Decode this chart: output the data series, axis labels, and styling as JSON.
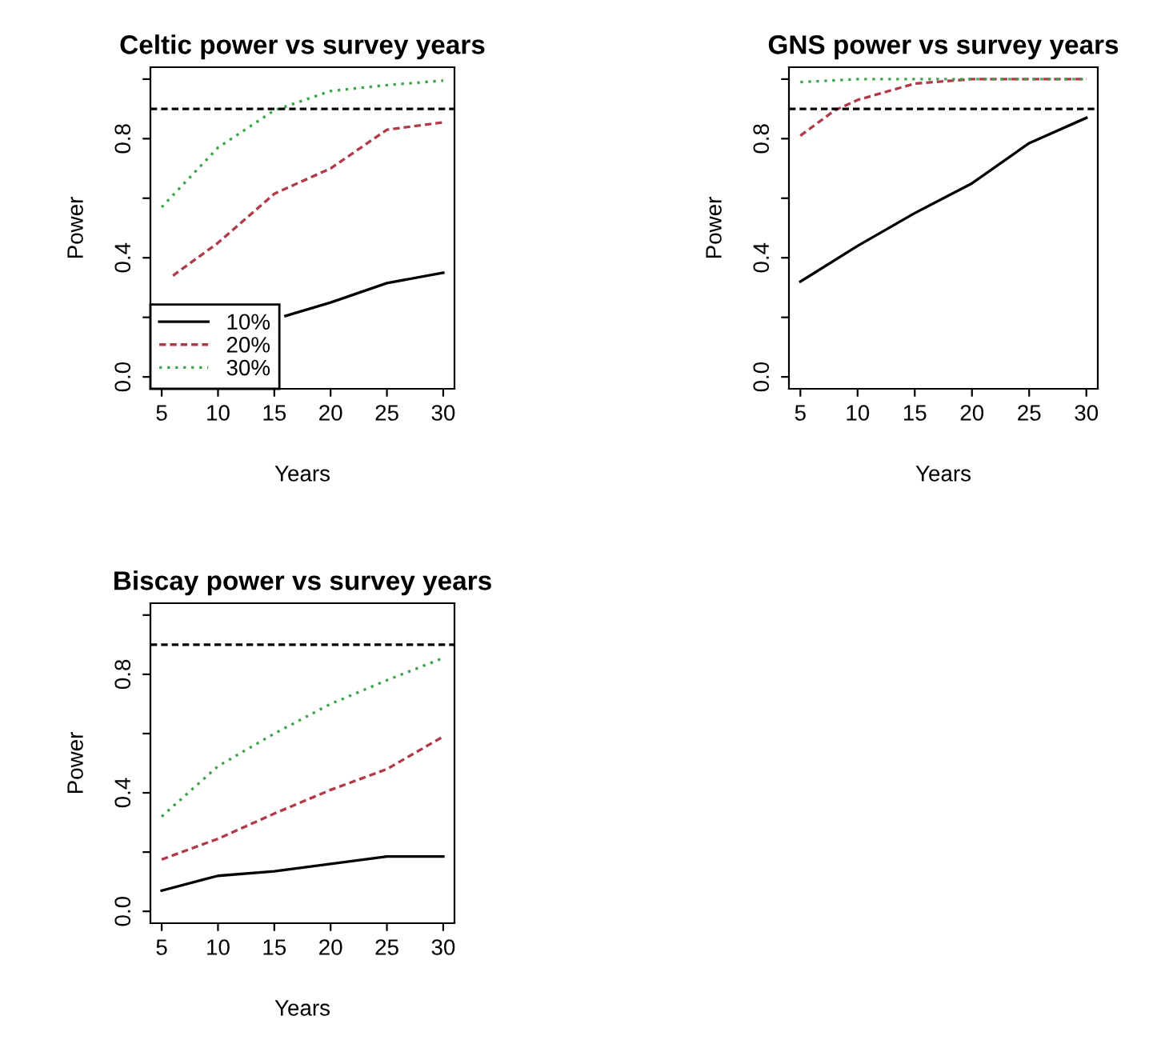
{
  "chart_data": [
    {
      "type": "line",
      "title": "Celtic power vs survey years",
      "xlabel": "Years",
      "ylabel": "Power",
      "xlim": [
        4,
        31
      ],
      "ylim": [
        -0.04,
        1.04
      ],
      "xticks": [
        5,
        10,
        15,
        20,
        25,
        30
      ],
      "yticks": [
        {
          "value": 0,
          "label": "0.0"
        },
        {
          "value": 0.2,
          "label": null
        },
        {
          "value": 0.4,
          "label": "0.4"
        },
        {
          "value": 0.6,
          "label": null
        },
        {
          "value": 0.8,
          "label": "0.8"
        },
        {
          "value": 1.0,
          "label": null
        }
      ],
      "grid": false,
      "legend": "bottom left",
      "ref_lines": [
        {
          "axis": "y",
          "value": 0.9,
          "color": "#000000",
          "line_style": "dashed"
        }
      ],
      "series": [
        {
          "name": "10%",
          "color": "#000000",
          "line_style": "solid",
          "x": [
            16,
            20,
            25,
            30
          ],
          "values": [
            0.205,
            0.25,
            0.315,
            0.35
          ]
        },
        {
          "name": "20%",
          "color": "#b03a48",
          "line_style": "dashed",
          "x": [
            6,
            10,
            15,
            20,
            25,
            30
          ],
          "values": [
            0.34,
            0.45,
            0.615,
            0.7,
            0.83,
            0.855
          ]
        },
        {
          "name": "30%",
          "color": "#3fa34d",
          "line_style": "dotted",
          "x": [
            5,
            10,
            15,
            20,
            25,
            30
          ],
          "values": [
            0.57,
            0.77,
            0.895,
            0.96,
            0.98,
            0.995
          ]
        }
      ]
    },
    {
      "type": "line",
      "title": "GNS power vs survey years",
      "xlabel": "Years",
      "ylabel": "Power",
      "xlim": [
        4,
        31
      ],
      "ylim": [
        -0.04,
        1.04
      ],
      "xticks": [
        5,
        10,
        15,
        20,
        25,
        30
      ],
      "yticks": [
        {
          "value": 0,
          "label": "0.0"
        },
        {
          "value": 0.2,
          "label": null
        },
        {
          "value": 0.4,
          "label": "0.4"
        },
        {
          "value": 0.6,
          "label": null
        },
        {
          "value": 0.8,
          "label": "0.8"
        },
        {
          "value": 1.0,
          "label": null
        }
      ],
      "grid": false,
      "ref_lines": [
        {
          "axis": "y",
          "value": 0.9,
          "color": "#000000",
          "line_style": "dashed"
        }
      ],
      "series": [
        {
          "color": "#000000",
          "line_style": "solid",
          "x": [
            5,
            10,
            15,
            20,
            25,
            30
          ],
          "values": [
            0.32,
            0.44,
            0.55,
            0.65,
            0.785,
            0.87
          ]
        },
        {
          "color": "#b03a48",
          "line_style": "dashed",
          "x": [
            5,
            8,
            10,
            15,
            20,
            25,
            30
          ],
          "values": [
            0.81,
            0.895,
            0.93,
            0.985,
            1.0,
            1.0,
            1.0
          ]
        },
        {
          "color": "#3fa34d",
          "line_style": "dotted",
          "x": [
            5,
            10,
            15,
            20,
            25,
            30
          ],
          "values": [
            0.99,
            1.0,
            1.0,
            1.0,
            1.0,
            1.0
          ]
        }
      ]
    },
    {
      "type": "line",
      "title": "Biscay power vs survey years",
      "xlabel": "Years",
      "ylabel": "Power",
      "xlim": [
        4,
        31
      ],
      "ylim": [
        -0.04,
        1.04
      ],
      "xticks": [
        5,
        10,
        15,
        20,
        25,
        30
      ],
      "yticks": [
        {
          "value": 0,
          "label": "0.0"
        },
        {
          "value": 0.2,
          "label": null
        },
        {
          "value": 0.4,
          "label": "0.4"
        },
        {
          "value": 0.6,
          "label": null
        },
        {
          "value": 0.8,
          "label": "0.8"
        },
        {
          "value": 1.0,
          "label": null
        }
      ],
      "grid": false,
      "ref_lines": [
        {
          "axis": "y",
          "value": 0.9,
          "color": "#000000",
          "line_style": "dashed"
        }
      ],
      "series": [
        {
          "color": "#000000",
          "line_style": "solid",
          "x": [
            5,
            10,
            15,
            20,
            25,
            30
          ],
          "values": [
            0.07,
            0.12,
            0.135,
            0.16,
            0.185,
            0.185
          ]
        },
        {
          "color": "#b03a48",
          "line_style": "dashed",
          "x": [
            5,
            10,
            15,
            20,
            25,
            30
          ],
          "values": [
            0.175,
            0.245,
            0.33,
            0.41,
            0.48,
            0.59
          ]
        },
        {
          "color": "#3fa34d",
          "line_style": "dotted",
          "x": [
            5,
            10,
            15,
            20,
            25,
            30
          ],
          "values": [
            0.32,
            0.49,
            0.6,
            0.7,
            0.78,
            0.855
          ]
        }
      ]
    }
  ]
}
